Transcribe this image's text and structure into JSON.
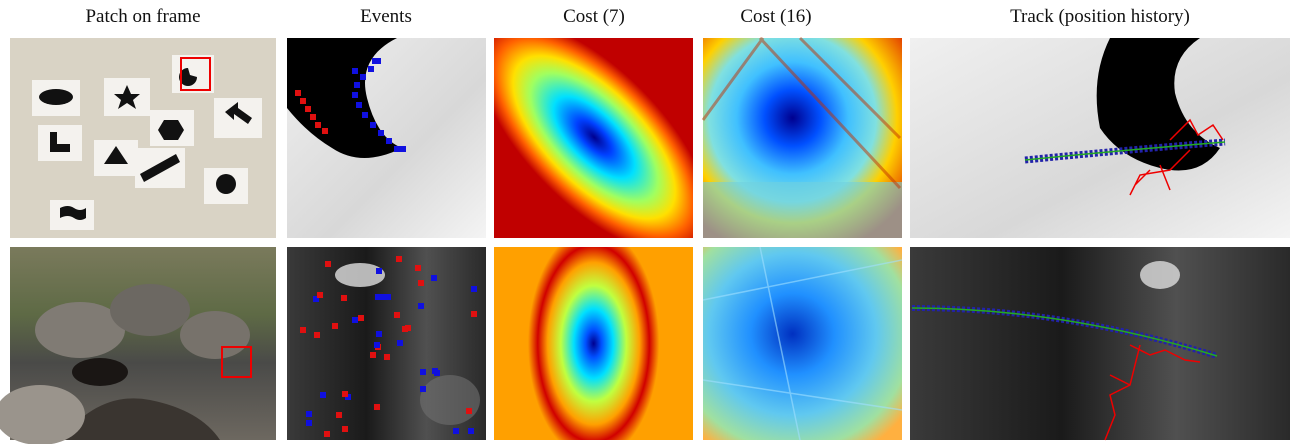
{
  "columns": [
    {
      "header": "Patch on frame"
    },
    {
      "header": "Events"
    },
    {
      "header": "Cost (7)"
    },
    {
      "header": "Cost (16)"
    },
    {
      "header": "Track (position history)"
    }
  ]
}
